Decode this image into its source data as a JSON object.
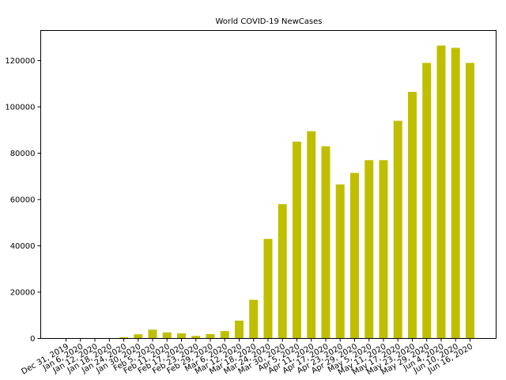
{
  "chart_data": {
    "type": "bar",
    "title": "World COVID-19 NewCases",
    "xlabel": "",
    "ylabel": "",
    "ylim": [
      0,
      133000
    ],
    "yticks": [
      0,
      20000,
      40000,
      60000,
      80000,
      100000,
      120000
    ],
    "grid": false,
    "bar_color": "#bfbf00",
    "categories": [
      "Dec 31, 2019",
      "Jan 6, 2020",
      "Jan 12, 2020",
      "Jan 18, 2020",
      "Jan 24, 2020",
      "Jan 30, 2020",
      "Feb 5, 2020",
      "Feb 11, 2020",
      "Feb 17, 2020",
      "Feb 23, 2020",
      "Feb 29, 2020",
      "Mar 6, 2020",
      "Mar 12, 2020",
      "Mar 18, 2020",
      "Mar 24, 2020",
      "Mar 30, 2020",
      "Apr 5, 2020",
      "Apr 11, 2020",
      "Apr 17, 2020",
      "Apr 23, 2020",
      "Apr 29, 2020",
      "May 5, 2020",
      "May 11, 2020",
      "May 17, 2020",
      "May 23, 2020",
      "May 29, 2020",
      "Jun 4, 2020",
      "Jun 10, 2020",
      "Jun 16, 2020"
    ],
    "values": [
      0,
      50,
      50,
      50,
      500,
      1800,
      3800,
      2600,
      2200,
      1100,
      1900,
      3200,
      7700,
      16700,
      43000,
      58000,
      85000,
      89500,
      83000,
      66500,
      71500,
      77000,
      77000,
      94000,
      106500,
      119000,
      126500,
      125500,
      119000
    ]
  }
}
